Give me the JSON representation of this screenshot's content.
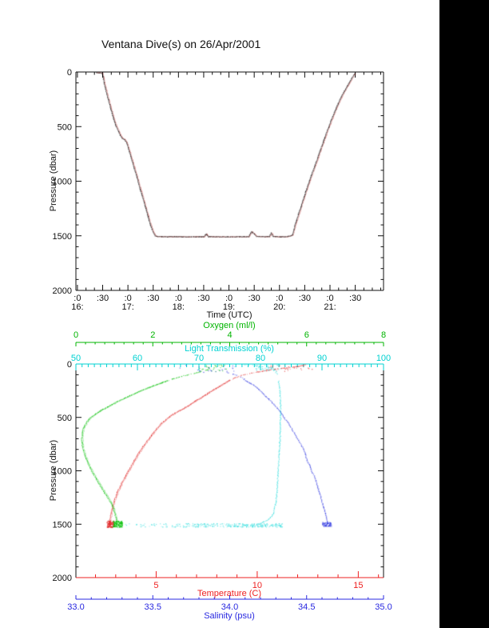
{
  "title": "Ventana Dive(s) on 26/Apr/2001",
  "background": "#ffffff",
  "right_bar_color": "#000000",
  "chart_data": [
    {
      "type": "line",
      "name": "dive-depth-vs-time",
      "title": "Ventana Dive(s) on 26/Apr/2001",
      "xlabel": "Time (UTC)",
      "ylabel": "Pressure (dbar)",
      "x_axis": {
        "min_hours": 15.97,
        "max_hours": 22.06,
        "minor_step_hours": 0.1667,
        "majors": [
          {
            "t": 16.0,
            "minute": ":0",
            "hour": "16:"
          },
          {
            "t": 16.5,
            "minute": ":30",
            "hour": ""
          },
          {
            "t": 17.0,
            "minute": ":0",
            "hour": "17:"
          },
          {
            "t": 17.5,
            "minute": ":30",
            "hour": ""
          },
          {
            "t": 18.0,
            "minute": ":0",
            "hour": "18:"
          },
          {
            "t": 18.5,
            "minute": ":30",
            "hour": ""
          },
          {
            "t": 19.0,
            "minute": ":0",
            "hour": "19:"
          },
          {
            "t": 19.5,
            "minute": ":30",
            "hour": ""
          },
          {
            "t": 20.0,
            "minute": ":0",
            "hour": "20:"
          },
          {
            "t": 20.5,
            "minute": ":30",
            "hour": ""
          },
          {
            "t": 21.0,
            "minute": ":0",
            "hour": "21:"
          },
          {
            "t": 21.5,
            "minute": ":30",
            "hour": ""
          }
        ]
      },
      "y_axis": {
        "min": 0,
        "max": 2000,
        "minor_step": 100,
        "direction": "increasing-downward",
        "majors": [
          {
            "v": 0,
            "label": "0"
          },
          {
            "v": 500,
            "label": "500"
          },
          {
            "v": 1000,
            "label": "1000"
          },
          {
            "v": 1500,
            "label": "1500"
          },
          {
            "v": 2000,
            "label": "2000"
          }
        ]
      },
      "trace_colors": [
        "#141414",
        "#C03030"
      ],
      "points": [
        [
          16.37,
          4
        ],
        [
          16.42,
          5
        ],
        [
          16.48,
          7
        ],
        [
          16.5,
          35
        ],
        [
          16.52,
          95
        ],
        [
          16.56,
          175
        ],
        [
          16.61,
          260
        ],
        [
          16.66,
          345
        ],
        [
          16.71,
          425
        ],
        [
          16.76,
          495
        ],
        [
          16.81,
          545
        ],
        [
          16.85,
          585
        ],
        [
          16.88,
          603
        ],
        [
          16.93,
          617
        ],
        [
          16.97,
          648
        ],
        [
          17.02,
          725
        ],
        [
          17.09,
          835
        ],
        [
          17.16,
          945
        ],
        [
          17.23,
          1060
        ],
        [
          17.3,
          1170
        ],
        [
          17.37,
          1285
        ],
        [
          17.43,
          1385
        ],
        [
          17.49,
          1462
        ],
        [
          17.53,
          1497
        ],
        [
          17.57,
          1503
        ],
        [
          17.75,
          1505
        ],
        [
          17.95,
          1504
        ],
        [
          18.15,
          1506
        ],
        [
          18.35,
          1505
        ],
        [
          18.5,
          1505
        ],
        [
          18.54,
          1479
        ],
        [
          18.58,
          1504
        ],
        [
          18.8,
          1505
        ],
        [
          19.0,
          1506
        ],
        [
          19.2,
          1505
        ],
        [
          19.38,
          1504
        ],
        [
          19.44,
          1458
        ],
        [
          19.49,
          1478
        ],
        [
          19.54,
          1502
        ],
        [
          19.7,
          1504
        ],
        [
          19.79,
          1504
        ],
        [
          19.83,
          1470
        ],
        [
          19.87,
          1503
        ],
        [
          20.0,
          1505
        ],
        [
          20.12,
          1505
        ],
        [
          20.2,
          1498
        ],
        [
          20.25,
          1488
        ],
        [
          20.31,
          1385
        ],
        [
          20.39,
          1268
        ],
        [
          20.48,
          1140
        ],
        [
          20.58,
          1000
        ],
        [
          20.69,
          858
        ],
        [
          20.81,
          700
        ],
        [
          20.93,
          545
        ],
        [
          21.05,
          400
        ],
        [
          21.17,
          268
        ],
        [
          21.28,
          168
        ],
        [
          21.38,
          88
        ],
        [
          21.46,
          24
        ],
        [
          21.5,
          4
        ]
      ]
    },
    {
      "type": "scatter",
      "name": "ctd-profiles-vs-pressure",
      "ylabel": "Pressure (dbar)",
      "y_axis": {
        "min": 0,
        "max": 2000,
        "minor_step": 100,
        "direction": "increasing-downward",
        "majors": [
          {
            "v": 0,
            "label": "0"
          },
          {
            "v": 500,
            "label": "500"
          },
          {
            "v": 1000,
            "label": "1000"
          },
          {
            "v": 1500,
            "label": "1500"
          },
          {
            "v": 2000,
            "label": "2000"
          }
        ]
      },
      "axes": {
        "oxygen": {
          "label": "Oxygen (ml/l)",
          "color": "#00B400",
          "min": 0,
          "max": 8,
          "minor_step": 0.25,
          "majors": [
            {
              "v": 0,
              "label": "0"
            },
            {
              "v": 2,
              "label": "2"
            },
            {
              "v": 4,
              "label": "4"
            },
            {
              "v": 6,
              "label": "6"
            },
            {
              "v": 8,
              "label": "8"
            }
          ]
        },
        "light": {
          "label": "Light Transmission (%)",
          "color": "#00D2D2",
          "min": 50,
          "max": 100,
          "minor_step": 1,
          "majors": [
            {
              "v": 50,
              "label": "50"
            },
            {
              "v": 60,
              "label": "60"
            },
            {
              "v": 70,
              "label": "70"
            },
            {
              "v": 80,
              "label": "80"
            },
            {
              "v": 90,
              "label": "90"
            },
            {
              "v": 100,
              "label": "100"
            }
          ]
        },
        "temperature": {
          "label": "Temperature (C)",
          "color": "#EE2222",
          "min": 1.03,
          "max": 16.25,
          "minor_step": 1,
          "majors": [
            {
              "v": 5,
              "label": "5"
            },
            {
              "v": 10,
              "label": "10"
            },
            {
              "v": 15,
              "label": "15"
            }
          ]
        },
        "salinity": {
          "label": "Salinity (psu)",
          "color": "#2828E0",
          "min": 33.0,
          "max": 35.0,
          "minor_step": 0.1,
          "majors": [
            {
              "v": 33.0,
              "label": "33.0"
            },
            {
              "v": 33.5,
              "label": "33.5"
            },
            {
              "v": 34.0,
              "label": "34.0"
            },
            {
              "v": 34.5,
              "label": "34.5"
            },
            {
              "v": 35.0,
              "label": "35.0"
            }
          ]
        }
      },
      "series": [
        {
          "name": "temperature",
          "axis": "temperature",
          "color": "#E02828",
          "doubled": true,
          "points": [
            [
              0,
              12.4
            ],
            [
              15,
              12.1
            ],
            [
              30,
              11.5
            ],
            [
              45,
              10.8
            ],
            [
              60,
              10.3
            ],
            [
              80,
              9.7
            ],
            [
              100,
              9.25
            ],
            [
              130,
              8.8
            ],
            [
              160,
              8.5
            ],
            [
              200,
              8.15
            ],
            [
              250,
              7.7
            ],
            [
              300,
              7.3
            ],
            [
              350,
              6.85
            ],
            [
              400,
              6.45
            ],
            [
              450,
              5.95
            ],
            [
              500,
              5.55
            ],
            [
              550,
              5.25
            ],
            [
              600,
              5.0
            ],
            [
              650,
              4.8
            ],
            [
              700,
              4.6
            ],
            [
              750,
              4.4
            ],
            [
              800,
              4.22
            ],
            [
              850,
              4.05
            ],
            [
              900,
              3.9
            ],
            [
              950,
              3.75
            ],
            [
              1000,
              3.6
            ],
            [
              1050,
              3.45
            ],
            [
              1100,
              3.3
            ],
            [
              1150,
              3.17
            ],
            [
              1200,
              3.05
            ],
            [
              1250,
              2.95
            ],
            [
              1300,
              2.87
            ],
            [
              1350,
              2.8
            ],
            [
              1400,
              2.74
            ],
            [
              1450,
              2.7
            ],
            [
              1500,
              2.68
            ]
          ]
        },
        {
          "name": "oxygen",
          "axis": "oxygen",
          "color": "#00C000",
          "doubled": true,
          "points": [
            [
              0,
              3.7
            ],
            [
              20,
              3.65
            ],
            [
              40,
              3.5
            ],
            [
              60,
              3.3
            ],
            [
              80,
              3.1
            ],
            [
              100,
              2.85
            ],
            [
              130,
              2.55
            ],
            [
              160,
              2.3
            ],
            [
              200,
              2.0
            ],
            [
              250,
              1.65
            ],
            [
              300,
              1.35
            ],
            [
              350,
              1.05
            ],
            [
              400,
              0.8
            ],
            [
              450,
              0.55
            ],
            [
              500,
              0.36
            ],
            [
              550,
              0.25
            ],
            [
              600,
              0.18
            ],
            [
              650,
              0.15
            ],
            [
              700,
              0.14
            ],
            [
              750,
              0.15
            ],
            [
              800,
              0.18
            ],
            [
              850,
              0.22
            ],
            [
              900,
              0.27
            ],
            [
              950,
              0.33
            ],
            [
              1000,
              0.4
            ],
            [
              1050,
              0.48
            ],
            [
              1100,
              0.56
            ],
            [
              1150,
              0.65
            ],
            [
              1200,
              0.73
            ],
            [
              1250,
              0.82
            ],
            [
              1300,
              0.9
            ],
            [
              1350,
              0.96
            ],
            [
              1400,
              1.0
            ],
            [
              1450,
              1.04
            ],
            [
              1500,
              1.05
            ]
          ]
        },
        {
          "name": "salinity",
          "axis": "salinity",
          "color": "#3038E0",
          "doubled": false,
          "points": [
            [
              55,
              33.93
            ],
            [
              80,
              34.0
            ],
            [
              100,
              34.04
            ],
            [
              130,
              34.08
            ],
            [
              160,
              34.11
            ],
            [
              200,
              34.16
            ],
            [
              250,
              34.2
            ],
            [
              300,
              34.23
            ],
            [
              350,
              34.27
            ],
            [
              400,
              34.3
            ],
            [
              450,
              34.33
            ],
            [
              500,
              34.35
            ],
            [
              550,
              34.38
            ],
            [
              600,
              34.4
            ],
            [
              650,
              34.42
            ],
            [
              700,
              34.44
            ],
            [
              750,
              34.46
            ],
            [
              800,
              34.48
            ],
            [
              850,
              34.49
            ],
            [
              900,
              34.5
            ],
            [
              950,
              34.52
            ],
            [
              1000,
              34.53
            ],
            [
              1050,
              34.55
            ],
            [
              1100,
              34.56
            ],
            [
              1150,
              34.57
            ],
            [
              1200,
              34.58
            ],
            [
              1250,
              34.59
            ],
            [
              1300,
              34.6
            ],
            [
              1350,
              34.61
            ],
            [
              1400,
              34.62
            ],
            [
              1450,
              34.63
            ],
            [
              1500,
              34.63
            ]
          ]
        },
        {
          "name": "light",
          "axis": "light",
          "color": "#28DCDC",
          "doubled": false,
          "points": [
            [
              0,
              77.0
            ],
            [
              10,
              79.0
            ],
            [
              20,
              80.5
            ],
            [
              30,
              81.5
            ],
            [
              50,
              82.2
            ],
            [
              100,
              82.7
            ],
            [
              200,
              83.0
            ],
            [
              300,
              83.15
            ],
            [
              400,
              83.2
            ],
            [
              500,
              83.2
            ],
            [
              600,
              83.15
            ],
            [
              700,
              83.1
            ],
            [
              800,
              83.0
            ],
            [
              900,
              82.9
            ],
            [
              1000,
              82.8
            ],
            [
              1100,
              82.7
            ],
            [
              1200,
              82.6
            ],
            [
              1300,
              82.4
            ],
            [
              1400,
              82.0
            ],
            [
              1450,
              81.3
            ],
            [
              1480,
              80.3
            ],
            [
              1500,
              79.5
            ]
          ]
        }
      ],
      "surface_scatter": [
        {
          "series": "oxygen",
          "p": [
            5,
            70
          ],
          "v": [
            3.2,
            3.9
          ],
          "n": 24
        },
        {
          "series": "temperature",
          "p": [
            5,
            70
          ],
          "v": [
            10.4,
            12.7
          ],
          "n": 28
        },
        {
          "series": "salinity",
          "p": [
            8,
            80
          ],
          "v": [
            33.65,
            34.05
          ],
          "n": 22
        },
        {
          "series": "light",
          "p": [
            3,
            60
          ],
          "v": [
            78.5,
            83.2
          ],
          "n": 30
        }
      ],
      "bottom_clusters": [
        {
          "series": "temperature",
          "p": [
            1465,
            1528
          ],
          "v": [
            2.55,
            2.9
          ],
          "n": 140
        },
        {
          "series": "oxygen",
          "p": [
            1465,
            1528
          ],
          "v": [
            0.95,
            1.2
          ],
          "n": 140
        },
        {
          "series": "salinity",
          "p": [
            1478,
            1520
          ],
          "v": [
            34.6,
            34.66
          ],
          "n": 80
        },
        {
          "series": "light",
          "p": [
            1490,
            1524
          ],
          "v": [
            56.0,
            83.5
          ],
          "n": 280,
          "bias": true
        }
      ]
    }
  ]
}
